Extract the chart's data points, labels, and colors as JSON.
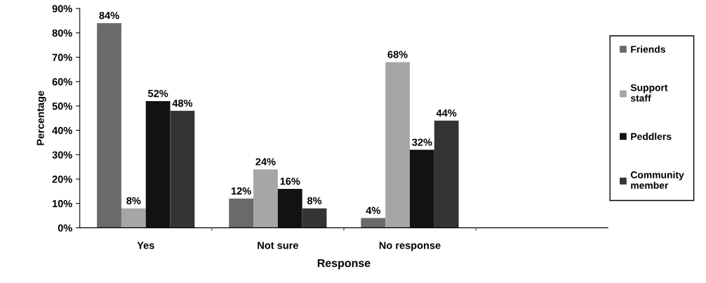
{
  "chart_data": {
    "type": "bar",
    "xlabel": "Response",
    "ylabel": "Percentage",
    "categories": [
      "Yes",
      "Not sure",
      "No response",
      null
    ],
    "series": [
      {
        "name": "Friends",
        "color": "#6a6a6a",
        "values": [
          84,
          12,
          4,
          null
        ],
        "value_labels": [
          "84%",
          "12%",
          "4%",
          null
        ]
      },
      {
        "name": "Support staff",
        "color": "#a6a6a6",
        "values": [
          8,
          24,
          68,
          null
        ],
        "value_labels": [
          "8%",
          "24%",
          "68%",
          null
        ]
      },
      {
        "name": "Peddlers",
        "color": "#121212",
        "values": [
          52,
          16,
          32,
          null
        ],
        "value_labels": [
          "52%",
          "16%",
          "32%",
          null
        ]
      },
      {
        "name": "Community member",
        "color": "#343434",
        "values": [
          48,
          8,
          44,
          null
        ],
        "value_labels": [
          "48%",
          "8%",
          "44%",
          null
        ]
      }
    ],
    "ylim": [
      0,
      90
    ],
    "yticks": [
      {
        "value": 0,
        "label": "0%"
      },
      {
        "value": 10,
        "label": "10%"
      },
      {
        "value": 20,
        "label": "20%"
      },
      {
        "value": 30,
        "label": "30%"
      },
      {
        "value": 40,
        "label": "40%"
      },
      {
        "value": 50,
        "label": "50%"
      },
      {
        "value": 60,
        "label": "60%"
      },
      {
        "value": 70,
        "label": "70%"
      },
      {
        "value": 80,
        "label": "80%"
      },
      {
        "value": 90,
        "label": "90%"
      }
    ],
    "grid": false,
    "legend": "right"
  }
}
